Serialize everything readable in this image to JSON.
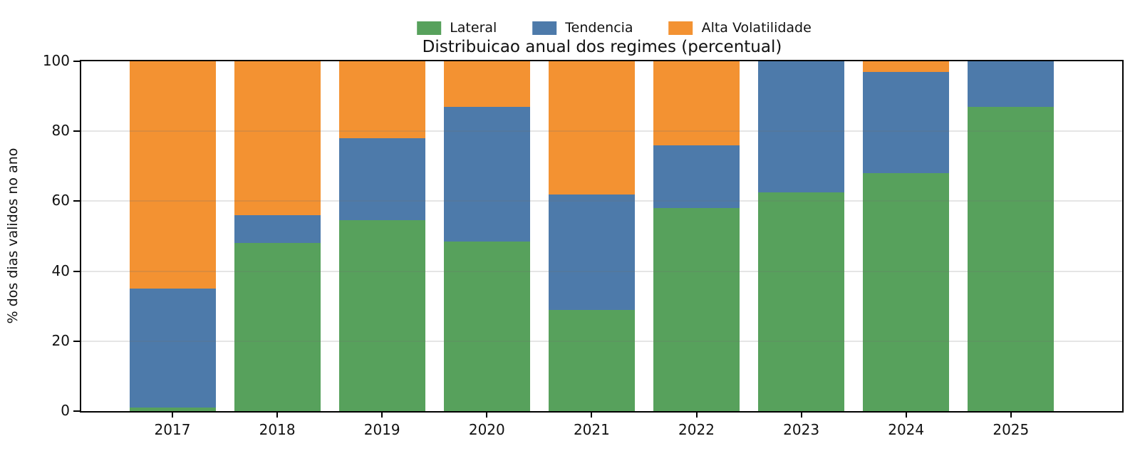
{
  "chart_data": {
    "type": "bar",
    "stacked": true,
    "title": "Distribuicao anual dos regimes (percentual)",
    "ylabel": "% dos dias validos no ano",
    "xlabel": "",
    "categories": [
      "2017",
      "2018",
      "2019",
      "2020",
      "2021",
      "2022",
      "2023",
      "2024",
      "2025"
    ],
    "series": [
      {
        "name": "Lateral",
        "color": "#57A15C",
        "values": [
          1,
          48,
          54.5,
          48.5,
          29,
          58,
          62.5,
          68,
          87
        ]
      },
      {
        "name": "Tendencia",
        "color": "#4D7AAA",
        "values": [
          34,
          8,
          23.5,
          38.5,
          33,
          18,
          37.5,
          29,
          13
        ]
      },
      {
        "name": "Alta Volatilidade",
        "color": "#F39232",
        "values": [
          65,
          44,
          22,
          13,
          38,
          24,
          0,
          3,
          0
        ]
      }
    ],
    "ylim": [
      0,
      100
    ],
    "yticks": [
      0,
      20,
      40,
      60,
      80,
      100
    ],
    "grid": true,
    "gridline_values": [
      20,
      40,
      60,
      80
    ],
    "legend_position": "top-center",
    "colors": {
      "lateral": "#57A15C",
      "tendencia": "#4D7AAA",
      "alta_volatilidade": "#F39232",
      "grid": "#E7E7E7",
      "spine": "#000000"
    }
  }
}
